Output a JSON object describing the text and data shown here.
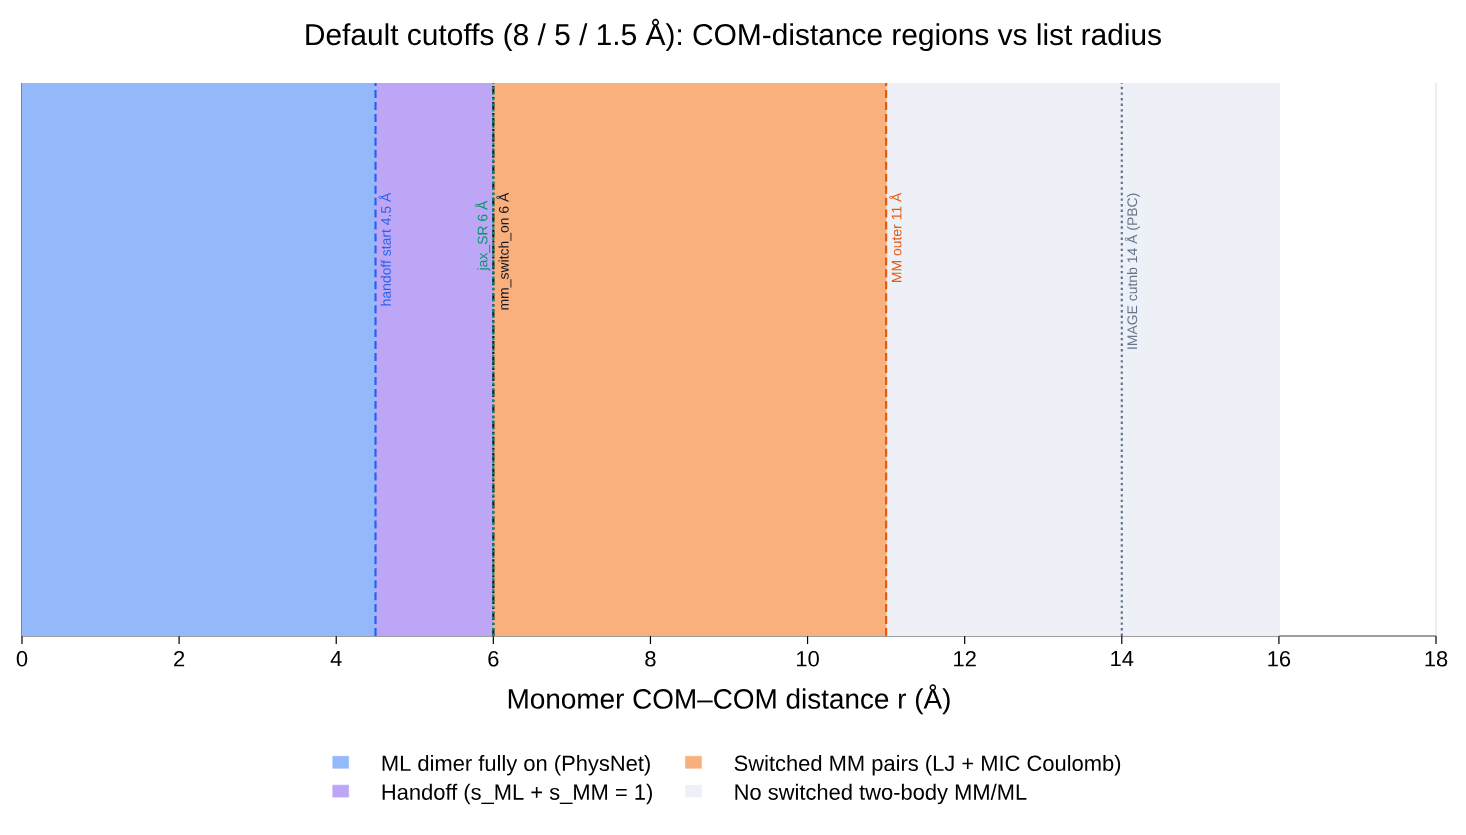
{
  "chart_data": {
    "type": "bar",
    "orientation": "horizontal",
    "stacked": true,
    "title": "Default cutoffs (8 / 5 / 1.5 Å): COM-distance regions vs list radius",
    "xlabel": "Monomer COM–COM distance r (Å)",
    "xlim": [
      0,
      18
    ],
    "xticks": [
      0,
      2,
      4,
      6,
      8,
      10,
      12,
      14,
      16,
      18
    ],
    "grid": "x",
    "tick_labels": "x",
    "legend": "bottom",
    "categories": [
      null
    ],
    "series": [
      {
        "name": "ML dimer fully on (PhysNet)",
        "color": "#93b9fa",
        "values": [
          4.5
        ]
      },
      {
        "name": "Handoff (s_ML + s_MM = 1)",
        "color": "#bea6f7",
        "values": [
          1.5
        ]
      },
      {
        "name": "Switched MM pairs (LJ + MIC Coulomb)",
        "color": "#f9b07c",
        "values": [
          5
        ]
      },
      {
        "name": "No switched two-body MM/ML",
        "color": "#edf1f7",
        "values": [
          5
        ]
      }
    ],
    "ref_lines": [
      {
        "axis": "x",
        "value": 4.5,
        "label": "handoff start 4.5 Å",
        "color": "#2563eb",
        "line_style": "dashed"
      },
      {
        "axis": "x",
        "value": 6,
        "label": "mm_switch_on 6 Å",
        "color": "#111827",
        "line_style": "dashdot"
      },
      {
        "axis": "x",
        "value": 6,
        "label": "jax_SR 6 Å",
        "color": "#059669",
        "line_style": "dotted"
      },
      {
        "axis": "x",
        "value": 11,
        "label": "MM outer 11 Å",
        "color": "#ea580c",
        "line_style": "dashed"
      },
      {
        "axis": "x",
        "value": 14,
        "label": "IMAGE cutnb 14 Å (PBC)",
        "color": "#64748b",
        "line_style": "dotted"
      }
    ]
  }
}
